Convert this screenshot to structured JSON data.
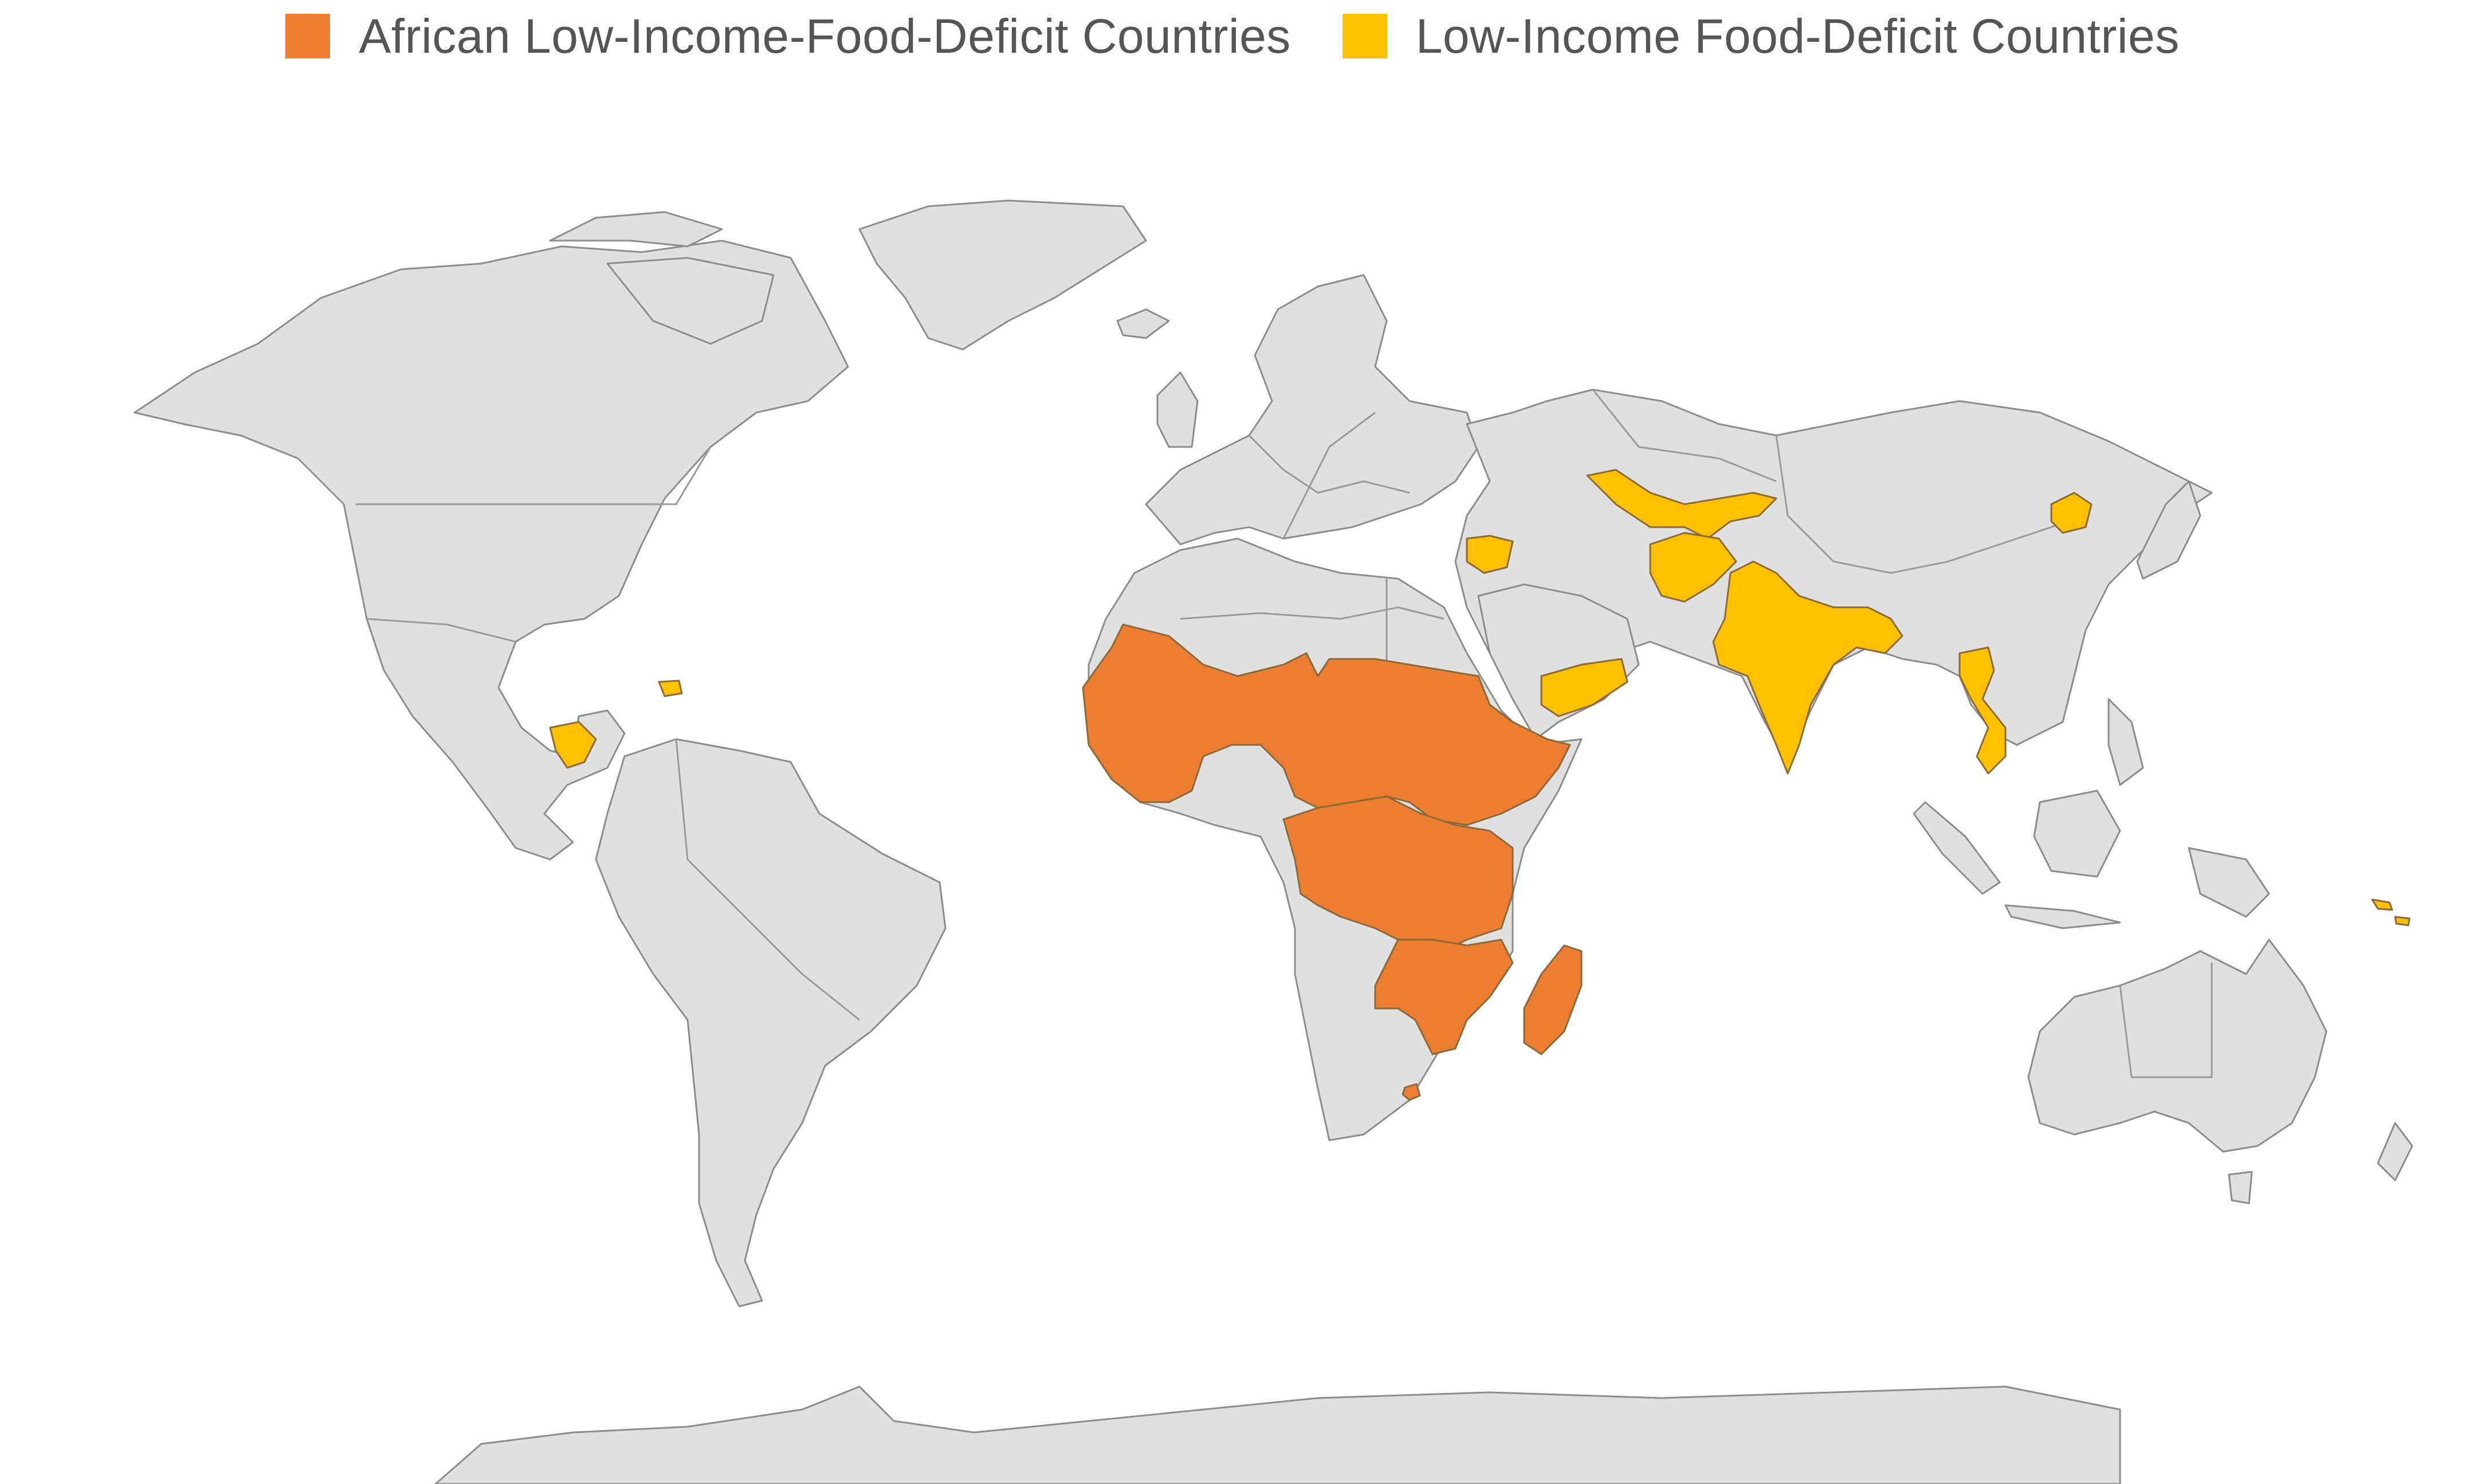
{
  "legend": {
    "items": [
      {
        "label": "African Low-Income-Food-Deficit Countries",
        "color": "#ed7d31"
      },
      {
        "label": "Low-Income Food-Deficit Countries",
        "color": "#ffc000"
      }
    ]
  },
  "map": {
    "base_land_color": "#e0e0e0",
    "border_color": "#8c8c8c",
    "categories": {
      "african_lifdc": {
        "color": "#ed7d31",
        "regions": [
          "West Africa",
          "Sahel",
          "Central Africa",
          "East Africa",
          "Southern Africa (partial)",
          "Madagascar",
          "Lesotho"
        ]
      },
      "lifdc": {
        "color": "#ffc000",
        "regions": [
          "Nicaragua",
          "Haiti",
          "Syria",
          "Yemen",
          "Uzbekistan",
          "Kyrgyzstan",
          "Tajikistan",
          "Afghanistan",
          "India",
          "Nepal",
          "Bangladesh",
          "North Korea",
          "Vietnam",
          "Solomon Islands"
        ]
      }
    }
  }
}
